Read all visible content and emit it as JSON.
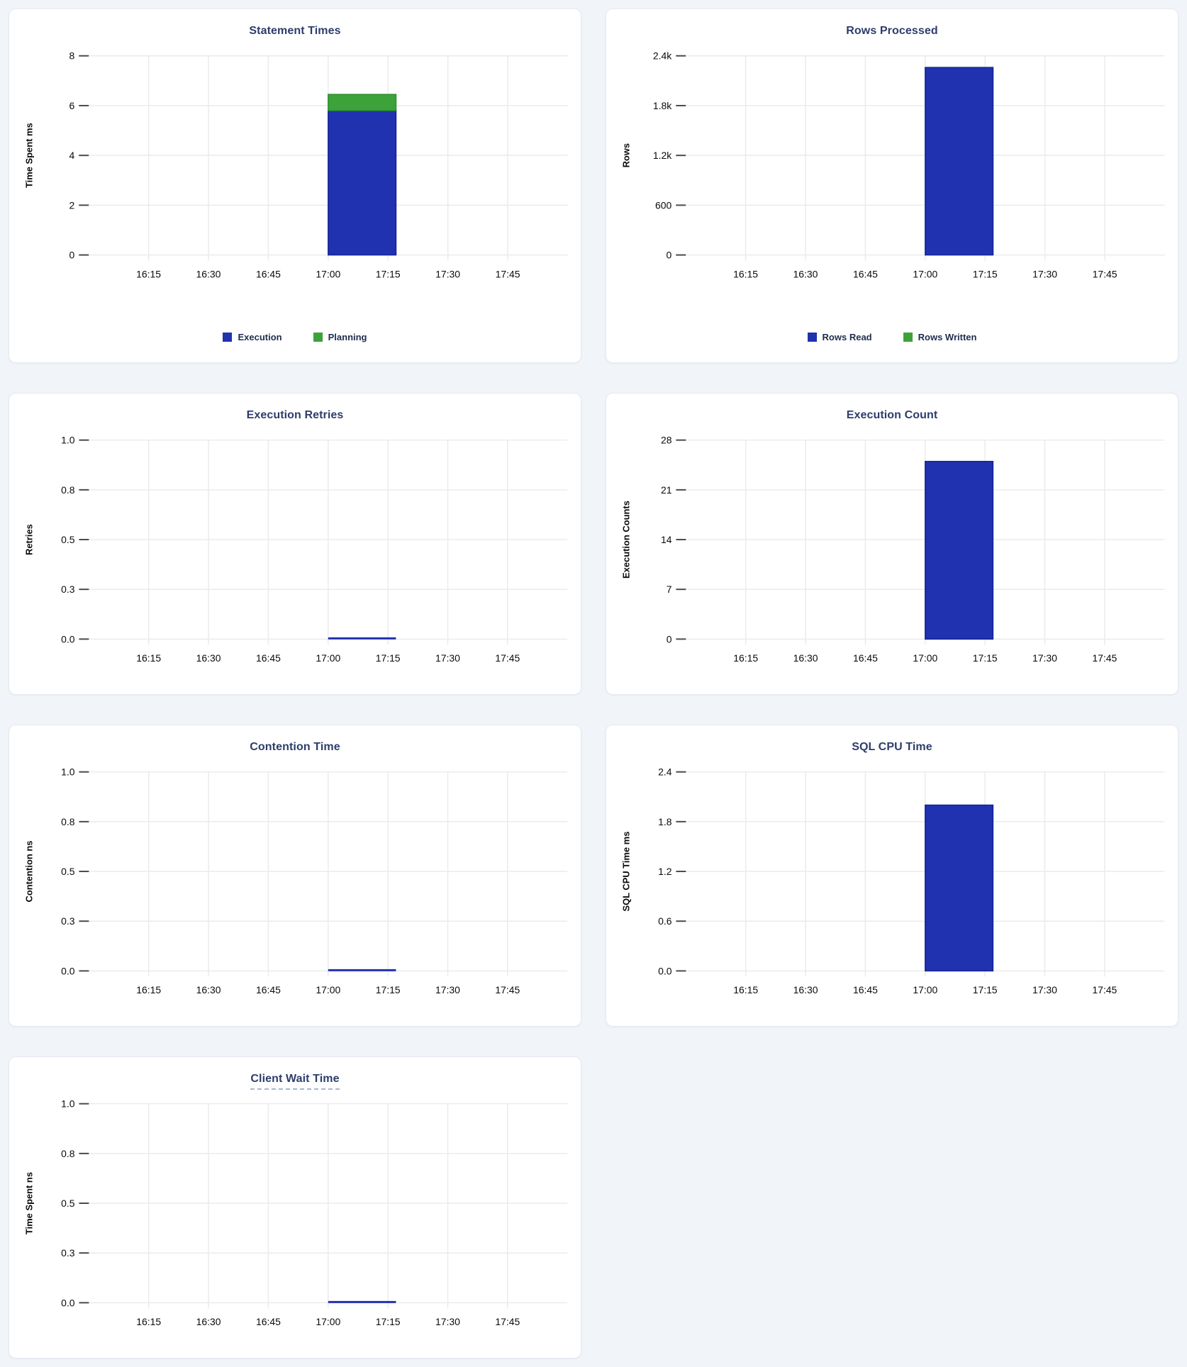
{
  "page": {
    "background": "#f1f5f9",
    "card_background": "#ffffff",
    "card_border": "#e5e9ef",
    "title_color": "#2e3d6b",
    "grid_color": "#ebebeb",
    "tick_color": "#4a4a4a",
    "axis_text_color": "#0a0a0a",
    "legend_text_color": "#1f2c4d",
    "bar_blue": "#2032b0",
    "bar_blue_border": "#172494",
    "bar_green": "#3da23a",
    "bar_green_border": "#2e8f2b"
  },
  "chart_data": [
    {
      "type": "bar",
      "title": "Statement Times",
      "ylabel": "Time Spent ms",
      "yticks": [
        "0",
        "2",
        "4",
        "6",
        "8"
      ],
      "ylim": [
        0,
        8
      ],
      "xticks": [
        "16:15",
        "16:30",
        "16:45",
        "17:00",
        "17:15",
        "17:30",
        "17:45"
      ],
      "xtick_minutes": [
        15,
        30,
        45,
        60,
        75,
        90,
        105
      ],
      "x_span_minutes": 120,
      "x_start_label": "16:00",
      "x_end_label": "18:00",
      "bar_x_minutes": [
        60,
        77
      ],
      "stacked": true,
      "grid": true,
      "legend": true,
      "legend_position": "bottom",
      "series": [
        {
          "name": "Execution",
          "value": 5.8,
          "color": "#2032b0",
          "border": "#172494"
        },
        {
          "name": "Planning",
          "value": 0.65,
          "color": "#3da23a",
          "border": "#2e8f2b"
        }
      ]
    },
    {
      "type": "bar",
      "title": "Rows Processed",
      "ylabel": "Rows",
      "yticks": [
        "0",
        "600",
        "1.2k",
        "1.8k",
        "2.4k"
      ],
      "ylim": [
        0,
        2400
      ],
      "xticks": [
        "16:15",
        "16:30",
        "16:45",
        "17:00",
        "17:15",
        "17:30",
        "17:45"
      ],
      "xtick_minutes": [
        15,
        30,
        45,
        60,
        75,
        90,
        105
      ],
      "x_span_minutes": 120,
      "x_start_label": "16:00",
      "x_end_label": "18:00",
      "bar_x_minutes": [
        60,
        77
      ],
      "stacked": true,
      "grid": true,
      "legend": true,
      "legend_position": "bottom",
      "series": [
        {
          "name": "Rows Read",
          "value": 2260,
          "color": "#2032b0",
          "border": "#172494"
        },
        {
          "name": "Rows Written",
          "value": 0,
          "color": "#3da23a",
          "border": "#2e8f2b"
        }
      ]
    },
    {
      "type": "bar",
      "title": "Execution Retries",
      "ylabel": "Retries",
      "yticks": [
        "0.0",
        "0.3",
        "0.5",
        "0.8",
        "1.0"
      ],
      "ylim": [
        0,
        1
      ],
      "xticks": [
        "16:15",
        "16:30",
        "16:45",
        "17:00",
        "17:15",
        "17:30",
        "17:45"
      ],
      "xtick_minutes": [
        15,
        30,
        45,
        60,
        75,
        90,
        105
      ],
      "x_span_minutes": 120,
      "x_start_label": "16:00",
      "x_end_label": "18:00",
      "bar_x_minutes": [
        60,
        77
      ],
      "stacked": false,
      "grid": true,
      "legend": false,
      "series": [
        {
          "name": "Retries",
          "value": 0,
          "color": "#2032b0",
          "border": "#172494"
        }
      ]
    },
    {
      "type": "bar",
      "title": "Execution Count",
      "ylabel": "Execution Counts",
      "yticks": [
        "0",
        "7",
        "14",
        "21",
        "28"
      ],
      "ylim": [
        0,
        28
      ],
      "xticks": [
        "16:15",
        "16:30",
        "16:45",
        "17:00",
        "17:15",
        "17:30",
        "17:45"
      ],
      "xtick_minutes": [
        15,
        30,
        45,
        60,
        75,
        90,
        105
      ],
      "x_span_minutes": 120,
      "x_start_label": "16:00",
      "x_end_label": "18:00",
      "bar_x_minutes": [
        60,
        77
      ],
      "stacked": false,
      "grid": true,
      "legend": false,
      "series": [
        {
          "name": "Execution Count",
          "value": 25,
          "color": "#2032b0",
          "border": "#172494"
        }
      ]
    },
    {
      "type": "bar",
      "title": "Contention Time",
      "ylabel": "Contention ns",
      "yticks": [
        "0.0",
        "0.3",
        "0.5",
        "0.8",
        "1.0"
      ],
      "ylim": [
        0,
        1
      ],
      "xticks": [
        "16:15",
        "16:30",
        "16:45",
        "17:00",
        "17:15",
        "17:30",
        "17:45"
      ],
      "xtick_minutes": [
        15,
        30,
        45,
        60,
        75,
        90,
        105
      ],
      "x_span_minutes": 120,
      "x_start_label": "16:00",
      "x_end_label": "18:00",
      "bar_x_minutes": [
        60,
        77
      ],
      "stacked": false,
      "grid": true,
      "legend": false,
      "series": [
        {
          "name": "Contention",
          "value": 0,
          "color": "#2032b0",
          "border": "#172494"
        }
      ]
    },
    {
      "type": "bar",
      "title": "SQL CPU Time",
      "ylabel": "SQL CPU Time ms",
      "yticks": [
        "0.0",
        "0.6",
        "1.2",
        "1.8",
        "2.4"
      ],
      "ylim": [
        0,
        2.4
      ],
      "xticks": [
        "16:15",
        "16:30",
        "16:45",
        "17:00",
        "17:15",
        "17:30",
        "17:45"
      ],
      "xtick_minutes": [
        15,
        30,
        45,
        60,
        75,
        90,
        105
      ],
      "x_span_minutes": 120,
      "x_start_label": "16:00",
      "x_end_label": "18:00",
      "bar_x_minutes": [
        60,
        77
      ],
      "stacked": false,
      "grid": true,
      "legend": false,
      "series": [
        {
          "name": "SQL CPU Time",
          "value": 2.0,
          "color": "#2032b0",
          "border": "#172494"
        }
      ]
    },
    {
      "type": "bar",
      "title": "Client Wait Time",
      "title_underline": true,
      "ylabel": "Time Spent ns",
      "yticks": [
        "0.0",
        "0.3",
        "0.5",
        "0.8",
        "1.0"
      ],
      "ylim": [
        0,
        1
      ],
      "xticks": [
        "16:15",
        "16:30",
        "16:45",
        "17:00",
        "17:15",
        "17:30",
        "17:45"
      ],
      "xtick_minutes": [
        15,
        30,
        45,
        60,
        75,
        90,
        105
      ],
      "x_span_minutes": 120,
      "x_start_label": "16:00",
      "x_end_label": "18:00",
      "bar_x_minutes": [
        60,
        77
      ],
      "stacked": false,
      "grid": true,
      "legend": false,
      "series": [
        {
          "name": "Client Wait Time",
          "value": 0,
          "color": "#2032b0",
          "border": "#172494"
        }
      ]
    }
  ]
}
